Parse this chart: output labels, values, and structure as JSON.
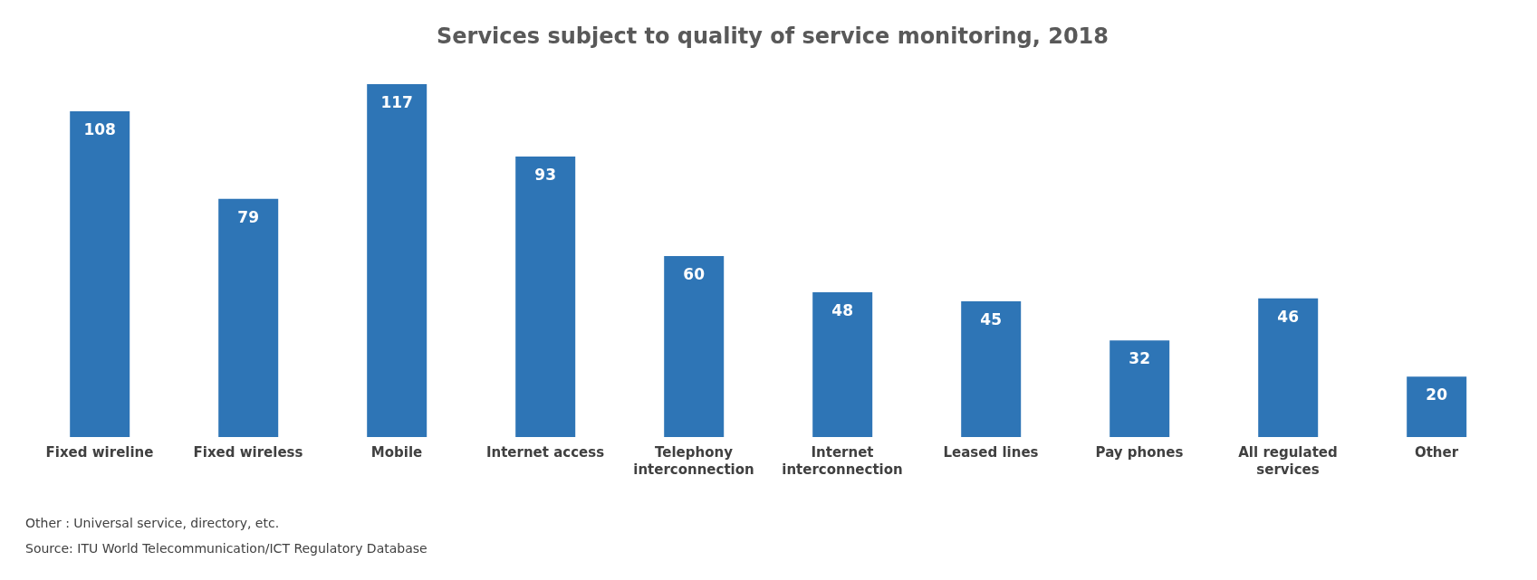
{
  "chart_data": {
    "type": "bar",
    "title": "Services subject to quality of service monitoring, 2018",
    "categories": [
      "Fixed wireline",
      "Fixed wireless",
      "Mobile",
      "Internet access",
      "Telephony interconnection",
      "Internet interconnection",
      "Leased lines",
      "Pay phones",
      "All regulated services",
      "Other"
    ],
    "values": [
      108,
      79,
      117,
      93,
      60,
      48,
      45,
      32,
      46,
      20
    ],
    "color": "#2e75b6",
    "data_labels": true,
    "grid": false,
    "legend": false,
    "annotations": [
      "Other : Universal service, directory, etc.",
      "Source: ITU World Telecommunication/ICT Regulatory Database"
    ]
  }
}
